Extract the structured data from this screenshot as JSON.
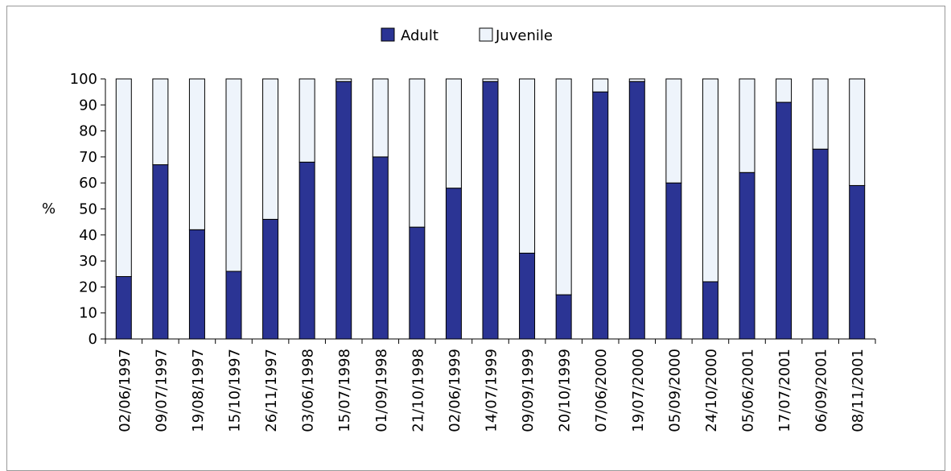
{
  "chart_data": {
    "type": "bar",
    "stacked": true,
    "categories": [
      "02/06/1997",
      "09/07/1997",
      "19/08/1997",
      "15/10/1997",
      "26/11/1997",
      "03/06/1998",
      "15/07/1998",
      "01/09/1998",
      "21/10/1998",
      "02/06/1999",
      "14/07/1999",
      "09/09/1999",
      "20/10/1999",
      "07/06/2000",
      "19/07/2000",
      "05/09/2000",
      "24/10/2000",
      "05/06/2001",
      "17/07/2001",
      "06/09/2001",
      "08/11/2001"
    ],
    "series": [
      {
        "name": "Adult",
        "color": "#2b3494",
        "values": [
          24,
          67,
          42,
          26,
          46,
          68,
          99,
          70,
          43,
          58,
          99,
          33,
          17,
          95,
          99,
          60,
          22,
          64,
          91,
          73,
          59
        ]
      },
      {
        "name": "Juvenile",
        "color": "#eef4fb",
        "values": [
          76,
          33,
          58,
          74,
          54,
          32,
          1,
          30,
          57,
          42,
          1,
          67,
          83,
          5,
          1,
          40,
          78,
          36,
          9,
          27,
          41
        ]
      }
    ],
    "ylabel": "%",
    "ylim": [
      0,
      100
    ],
    "yticks": [
      0,
      10,
      20,
      30,
      40,
      50,
      60,
      70,
      80,
      90,
      100
    ],
    "grid": false,
    "legend": "top-center"
  }
}
